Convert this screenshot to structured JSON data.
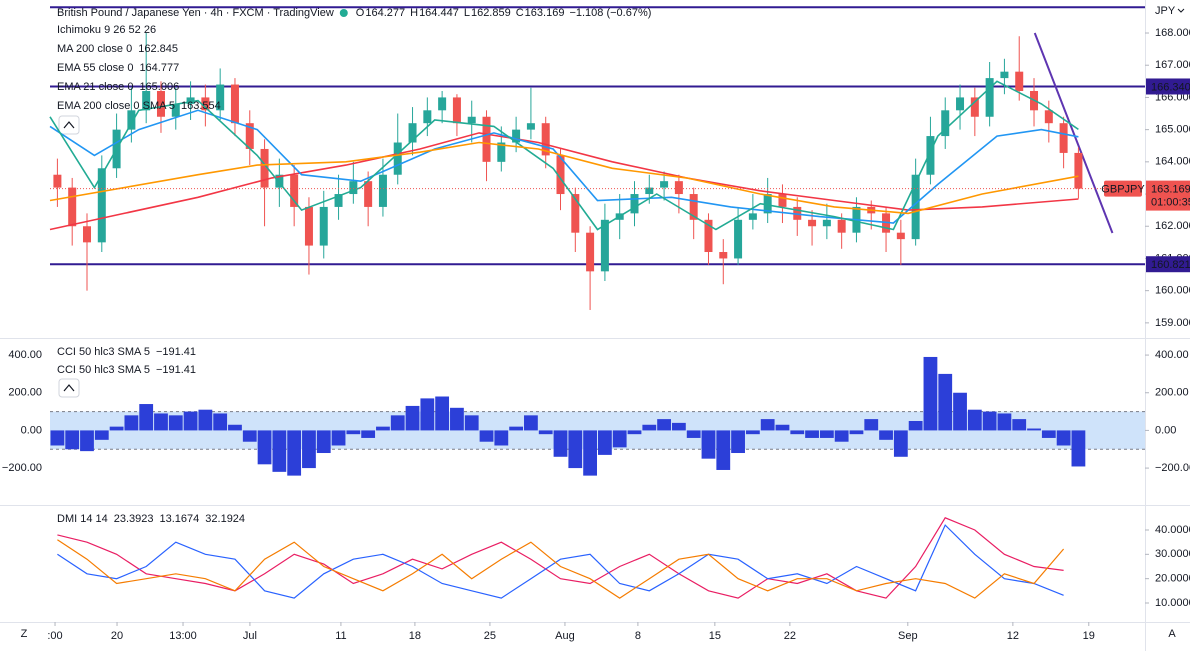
{
  "header": {
    "title": "British Pound / Japanese Yen · 4h · FXCM · TradingView",
    "ohlc_keys": [
      "O",
      "H",
      "L",
      "C"
    ],
    "change": "−1.108 (−0.67%)",
    "currency": "JPY"
  },
  "footer": {
    "left": "Z",
    "right": "A"
  },
  "chart_data": [
    {
      "type": "candlestick",
      "symbol": "GBPJPY",
      "countdown": "01:00:35",
      "up_color": "#26a69a",
      "down_color": "#ef5350",
      "x": [
        0.5,
        1.5,
        2.5,
        3.5,
        4.5,
        5.5,
        6.5,
        7.5,
        8.5,
        9.5,
        10.5,
        11.5,
        12.5,
        13.5,
        14.5,
        15.5,
        16.5,
        17.5,
        18.5,
        19.5,
        20.5,
        21.5,
        22.5,
        23.5,
        24.5,
        25.5,
        26.5,
        27.5,
        28.5,
        29.5,
        30.5,
        31.5,
        32.5,
        33.5,
        34.5,
        35.5,
        36.5,
        37.5,
        38.5,
        39.5,
        40.5,
        41.5,
        42.5,
        43.5,
        44.5,
        45.5,
        46.5,
        47.5,
        48.5,
        49.5,
        50.5,
        51.5,
        52.5,
        53.5,
        54.5,
        55.5,
        56.5,
        57.5,
        58.5,
        59.5,
        60.5,
        61.5,
        62.5,
        63.5,
        64.5,
        65.5,
        66.5,
        67.5,
        68.5,
        69.5
      ],
      "open": [
        163.6,
        163.2,
        162.0,
        161.5,
        163.8,
        165.0,
        165.6,
        166.2,
        165.4,
        165.8,
        166.0,
        165.6,
        166.4,
        165.2,
        164.4,
        163.2,
        163.6,
        162.6,
        161.4,
        162.6,
        163.0,
        163.4,
        162.6,
        163.6,
        164.6,
        165.2,
        165.6,
        166.0,
        165.2,
        165.4,
        164.0,
        164.6,
        165.0,
        165.2,
        164.2,
        163.0,
        161.8,
        160.6,
        162.2,
        162.4,
        163.0,
        163.2,
        163.4,
        163.0,
        162.2,
        161.2,
        161.0,
        162.2,
        162.4,
        163.0,
        162.6,
        162.2,
        162.0,
        162.2,
        161.8,
        162.6,
        162.4,
        161.8,
        161.6,
        163.6,
        164.8,
        165.6,
        166.0,
        165.4,
        166.6,
        166.8,
        166.2,
        165.6,
        165.2,
        164.277
      ],
      "high": [
        164.1,
        163.5,
        162.4,
        164.2,
        165.5,
        166.3,
        168.0,
        166.5,
        166.3,
        166.5,
        166.4,
        166.9,
        166.6,
        165.6,
        164.7,
        164.1,
        163.9,
        162.9,
        163.1,
        163.6,
        164.0,
        163.7,
        164.1,
        165.5,
        165.7,
        166.0,
        166.2,
        166.1,
        165.9,
        165.6,
        165.1,
        165.4,
        166.3,
        165.4,
        164.4,
        163.2,
        162.0,
        162.7,
        163.0,
        163.4,
        163.6,
        163.7,
        163.6,
        163.2,
        162.4,
        161.6,
        162.6,
        163.0,
        163.5,
        163.3,
        162.9,
        162.5,
        162.7,
        162.4,
        162.9,
        162.8,
        162.6,
        162.2,
        164.1,
        165.4,
        166.0,
        166.4,
        166.3,
        167.1,
        167.2,
        167.9,
        166.6,
        165.9,
        165.4,
        164.447
      ],
      "low": [
        162.6,
        161.4,
        160.0,
        161.2,
        163.5,
        164.6,
        165.2,
        164.9,
        165.0,
        165.3,
        165.1,
        165.3,
        164.8,
        163.9,
        162.0,
        162.6,
        162.0,
        160.5,
        161.0,
        162.2,
        162.7,
        162.0,
        162.3,
        163.3,
        164.2,
        164.8,
        165.2,
        164.8,
        164.6,
        163.4,
        163.7,
        164.3,
        164.7,
        163.8,
        162.5,
        161.2,
        159.4,
        160.3,
        161.6,
        162.0,
        162.7,
        162.8,
        162.4,
        161.6,
        160.8,
        160.2,
        160.8,
        161.9,
        162.1,
        162.1,
        161.7,
        161.4,
        161.6,
        161.3,
        161.5,
        161.9,
        161.2,
        160.8,
        161.4,
        163.3,
        164.4,
        165.0,
        164.8,
        165.1,
        166.1,
        165.9,
        165.1,
        164.6,
        163.8,
        162.859
      ],
      "close": [
        163.2,
        162.0,
        161.5,
        163.8,
        165.0,
        165.6,
        166.2,
        165.4,
        165.8,
        166.0,
        165.6,
        166.4,
        165.2,
        164.4,
        163.2,
        163.6,
        162.6,
        161.4,
        162.6,
        163.0,
        163.4,
        162.6,
        163.6,
        164.6,
        165.2,
        165.6,
        166.0,
        165.2,
        165.4,
        164.0,
        164.6,
        165.0,
        165.2,
        164.2,
        163.0,
        161.8,
        160.6,
        162.2,
        162.4,
        163.0,
        163.2,
        163.4,
        163.0,
        162.2,
        161.2,
        161.0,
        162.2,
        162.4,
        163.0,
        162.6,
        162.2,
        162.0,
        162.2,
        161.8,
        162.6,
        162.4,
        161.8,
        161.6,
        163.6,
        164.8,
        165.6,
        166.0,
        165.4,
        166.6,
        166.8,
        166.2,
        165.6,
        165.2,
        164.277,
        163.169
      ],
      "xlim": [
        0,
        74
      ],
      "xticks": [
        {
          "value": 0.34,
          "label": ":00"
        },
        {
          "value": 4.53,
          "label": "20"
        },
        {
          "value": 8.99,
          "label": "13:00"
        },
        {
          "value": 13.51,
          "label": "Jul"
        },
        {
          "value": 19.66,
          "label": "11"
        },
        {
          "value": 24.66,
          "label": "18"
        },
        {
          "value": 29.73,
          "label": "25"
        },
        {
          "value": 34.8,
          "label": "Aug"
        },
        {
          "value": 39.73,
          "label": "8"
        },
        {
          "value": 44.93,
          "label": "15"
        },
        {
          "value": 50,
          "label": "22"
        },
        {
          "value": 57.97,
          "label": "Sep"
        },
        {
          "value": 65.07,
          "label": "12"
        },
        {
          "value": 70.2,
          "label": "19"
        }
      ],
      "ylim": [
        158.53,
        168.87
      ],
      "yticks": [
        {
          "value": 159,
          "label": "159.000"
        },
        {
          "value": 160,
          "label": "160.000"
        },
        {
          "value": 161,
          "label": "161.000"
        },
        {
          "value": 162,
          "label": "162.000"
        },
        {
          "value": 163,
          "label": "163.000"
        },
        {
          "value": 164,
          "label": "164.000"
        },
        {
          "value": 165,
          "label": "165.000"
        },
        {
          "value": 166,
          "label": "166.000"
        },
        {
          "value": 167,
          "label": "167.000"
        },
        {
          "value": 168,
          "label": "168.000"
        }
      ],
      "indicators": [
        "Ichimoku 9 26 52 26"
      ],
      "series": [
        {
          "name": "MA 200 close 0",
          "color": "#f23645",
          "x": [
            0,
            5,
            10,
            15,
            20,
            25,
            29,
            33,
            38,
            43,
            48,
            53,
            58,
            63,
            69.5
          ],
          "values": [
            161.9,
            162.4,
            162.9,
            163.5,
            163.9,
            164.4,
            164.9,
            164.6,
            164.0,
            163.5,
            163.1,
            162.8,
            162.5,
            162.6,
            162.845
          ]
        },
        {
          "name": "EMA 55 close 0",
          "color": "#2196f3",
          "x": [
            0,
            3,
            6,
            10,
            14,
            17,
            21,
            26,
            30,
            34,
            37,
            42,
            46,
            52,
            57,
            60,
            64,
            67,
            69.5
          ],
          "values": [
            165.1,
            164.2,
            165.0,
            165.6,
            165.0,
            163.6,
            163.4,
            164.4,
            164.9,
            164.4,
            162.8,
            162.9,
            162.6,
            162.3,
            162.1,
            163.3,
            164.8,
            165.0,
            164.777
          ]
        },
        {
          "name": "EMA 21 close 0",
          "color": "#22ab94",
          "x": [
            0,
            3,
            6,
            10,
            14,
            17,
            21,
            26,
            30,
            34,
            37,
            41,
            45,
            48,
            53,
            57,
            60,
            64,
            67,
            69.5
          ],
          "values": [
            165.4,
            163.2,
            165.6,
            165.9,
            164.2,
            162.5,
            163.2,
            165.3,
            165.1,
            163.8,
            161.9,
            163.0,
            161.9,
            162.7,
            162.3,
            161.9,
            164.8,
            166.5,
            165.8,
            165.006
          ]
        },
        {
          "name": "EMA 200 close 0 SMA 5",
          "color": "#ff9800",
          "x": [
            0,
            10,
            14,
            20,
            25,
            29,
            33,
            38,
            43,
            48,
            53,
            58,
            63,
            69.5
          ],
          "values": [
            162.8,
            163.6,
            163.9,
            164.0,
            164.3,
            164.6,
            164.4,
            163.8,
            163.5,
            163.0,
            162.6,
            162.4,
            163.0,
            163.554
          ]
        }
      ],
      "levels": [
        {
          "value": 166.34,
          "label": "166.340",
          "color": "#311b92"
        },
        {
          "value": 160.821,
          "label": "160.821",
          "color": "#311b92"
        }
      ],
      "trend_lines": [
        {
          "x": [
            0,
            74
          ],
          "values": [
            168.8,
            168.8
          ],
          "color": "#311b92"
        },
        {
          "x": [
            66.55,
            71.8
          ],
          "values": [
            168.0,
            161.79
          ],
          "color": "#5e35b1"
        }
      ]
    },
    {
      "type": "histogram",
      "color": "#2c3fd8",
      "band": [
        -100,
        100
      ],
      "band_color": "#cfe3fa",
      "left_axis": true,
      "legend": [
        {
          "name": "CCI 50 hlc3 SMA 5",
          "value": "−191.41"
        },
        {
          "name": "CCI 50 hlc3 SMA 5",
          "value": "−191.41"
        }
      ],
      "x": [
        0.5,
        1.5,
        2.5,
        3.5,
        4.5,
        5.5,
        6.5,
        7.5,
        8.5,
        9.5,
        10.5,
        11.5,
        12.5,
        13.5,
        14.5,
        15.5,
        16.5,
        17.5,
        18.5,
        19.5,
        20.5,
        21.5,
        22.5,
        23.5,
        24.5,
        25.5,
        26.5,
        27.5,
        28.5,
        29.5,
        30.5,
        31.5,
        32.5,
        33.5,
        34.5,
        35.5,
        36.5,
        37.5,
        38.5,
        39.5,
        40.5,
        41.5,
        42.5,
        43.5,
        44.5,
        45.5,
        46.5,
        47.5,
        48.5,
        49.5,
        50.5,
        51.5,
        52.5,
        53.5,
        54.5,
        55.5,
        56.5,
        57.5,
        58.5,
        59.5,
        60.5,
        61.5,
        62.5,
        63.5,
        64.5,
        65.5,
        66.5,
        67.5,
        68.5,
        69.5
      ],
      "values": [
        -80,
        -100,
        -110,
        -50,
        20,
        80,
        140,
        90,
        80,
        100,
        110,
        90,
        30,
        -60,
        -180,
        -220,
        -240,
        -200,
        -120,
        -80,
        -20,
        -40,
        20,
        80,
        130,
        170,
        180,
        120,
        80,
        -60,
        -80,
        20,
        80,
        -20,
        -140,
        -200,
        -240,
        -130,
        -90,
        -20,
        30,
        60,
        40,
        -40,
        -150,
        -210,
        -120,
        -20,
        60,
        30,
        -20,
        -40,
        -40,
        -60,
        -20,
        60,
        -50,
        -140,
        50,
        390,
        300,
        200,
        110,
        100,
        90,
        60,
        10,
        -40,
        -80,
        -191.41
      ],
      "ylim": [
        -396,
        480
      ],
      "yticks": [
        {
          "value": -200,
          "label": "−200.00"
        },
        {
          "value": 0,
          "label": "0.00"
        },
        {
          "value": 200,
          "label": "200.00"
        },
        {
          "value": 400,
          "label": "400.00"
        }
      ]
    },
    {
      "type": "line",
      "title": "DMI 14 14",
      "x": [
        0.5,
        2.5,
        4.5,
        6.5,
        8.5,
        10.5,
        12.5,
        14.5,
        16.5,
        18.5,
        20.5,
        22.5,
        24.5,
        26.5,
        28.5,
        30.5,
        32.5,
        34.5,
        36.5,
        38.5,
        40.5,
        42.5,
        44.5,
        46.5,
        48.5,
        50.5,
        52.5,
        54.5,
        56.5,
        58.5,
        60.5,
        62.5,
        64.5,
        66.5,
        68.5
      ],
      "series": [
        {
          "color": "#e91e63",
          "values": [
            38,
            35,
            30,
            22,
            20,
            18,
            15,
            22,
            30,
            26,
            18,
            22,
            28,
            24,
            30,
            35,
            28,
            20,
            18,
            25,
            30,
            22,
            15,
            12,
            20,
            18,
            22,
            15,
            12,
            25,
            45,
            40,
            30,
            25,
            23.3923
          ]
        },
        {
          "color": "#2962ff",
          "values": [
            30,
            22,
            20,
            25,
            35,
            30,
            28,
            15,
            12,
            22,
            28,
            30,
            25,
            18,
            15,
            12,
            20,
            28,
            30,
            18,
            15,
            22,
            30,
            28,
            20,
            22,
            18,
            25,
            20,
            15,
            42,
            30,
            20,
            18,
            13.1674
          ]
        },
        {
          "color": "#f57c00",
          "values": [
            36,
            28,
            18,
            20,
            22,
            20,
            15,
            28,
            35,
            25,
            20,
            15,
            22,
            30,
            20,
            28,
            35,
            25,
            20,
            12,
            20,
            28,
            30,
            20,
            15,
            20,
            20,
            15,
            18,
            20,
            18,
            12,
            22,
            18,
            32.1924
          ]
        }
      ],
      "ylim": [
        2.19,
        49.45
      ],
      "yticks": [
        {
          "value": 10,
          "label": "10.0000"
        },
        {
          "value": 20,
          "label": "20.0000"
        },
        {
          "value": 30,
          "label": "30.0000"
        },
        {
          "value": 40,
          "label": "40.0000"
        }
      ]
    }
  ]
}
